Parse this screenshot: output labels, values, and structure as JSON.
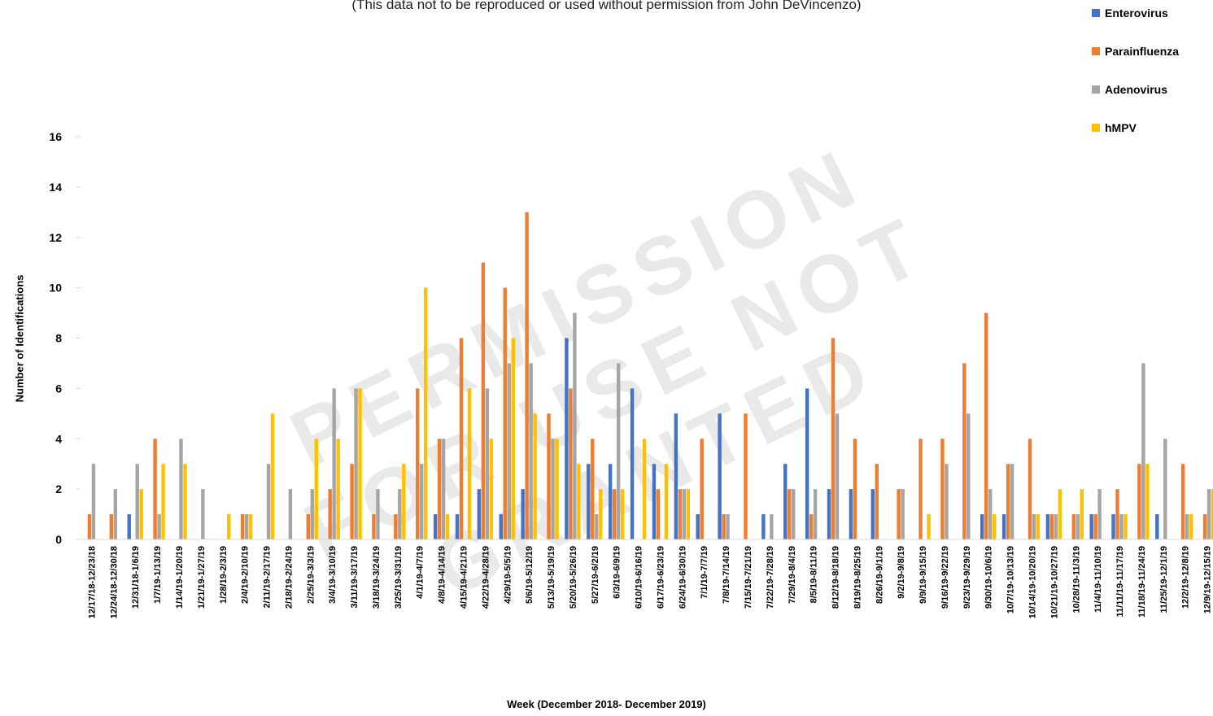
{
  "subtitle": "(This data not to be reproduced or used without permission from John DeVincenzo)",
  "watermark": [
    "PERMISSION",
    "FOR USE NOT",
    "GRANTED"
  ],
  "chart_data": {
    "type": "bar",
    "xlabel": "Week (December 2018- December 2019)",
    "ylabel": "Number of Identifications",
    "ylim": [
      0,
      16
    ],
    "yticks": [
      0,
      2,
      4,
      6,
      8,
      10,
      12,
      14,
      16
    ],
    "legend_position": "top-right",
    "grid": false,
    "categories": [
      "12/17/18-12/23/18",
      "12/24/18-12/30/18",
      "12/31/18-1/6/19",
      "1/7/19-1/13/19",
      "1/14/19-1/20/19",
      "1/21/19-1/27/19",
      "1/28/19-2/3/19",
      "2/4/19-2/10/19",
      "2/11/19-2/17/19",
      "2/18/19-2/24/19",
      "2/25/19-3/3/19",
      "3/4/19-3/10/19",
      "3/11/19-3/17/19",
      "3/18/19-3/24/19",
      "3/25/19-3/31/19",
      "4/1/19-4/7/19",
      "4/8/19-4/14/19",
      "4/15/19-4/21/19",
      "4/22/19-4/28/19",
      "4/29/19-5/5/19",
      "5/6/19-5/12/19",
      "5/13/19-5/19/19",
      "5/20/19-5/26/19",
      "5/27/19-6/2/19",
      "6/3/19-6/9/19",
      "6/10/19-6/16/19",
      "6/17/19-6/23/19",
      "6/24/19-6/30/19",
      "7/1/19-7/7/19",
      "7/8/19-7/14/19",
      "7/15/19-7/21/19",
      "7/22/19-7/28/19",
      "7/29/19-8/4/19",
      "8/5/19-8/11/19",
      "8/12/19-8/18/19",
      "8/19/19-8/25/19",
      "8/26/19-9/1/19",
      "9/2/19-9/8/19",
      "9/9/19-9/15/19",
      "9/16/19-9/22/19",
      "9/23/19-9/29/19",
      "9/30/19-10/6/19",
      "10/7/19-10/13/19",
      "10/14/19-10/20/19",
      "10/21/19-10/27/19",
      "10/28/19-11/3/19",
      "11/4/19-11/10/19",
      "11/11/19-11/17/19",
      "11/18/19-11/24/19",
      "11/25/19-12/1/19",
      "12/2/19-12/8/19",
      "12/9/19-12/15/19"
    ],
    "series": [
      {
        "name": "Enterovirus",
        "color": "#4472C4",
        "values": [
          0,
          0,
          1,
          0,
          0,
          0,
          0,
          0,
          0,
          0,
          0,
          0,
          0,
          0,
          0,
          0,
          1,
          1,
          2,
          1,
          2,
          0,
          8,
          3,
          3,
          6,
          3,
          5,
          1,
          5,
          0,
          1,
          3,
          6,
          2,
          2,
          2,
          0,
          0,
          0,
          0,
          1,
          1,
          0,
          1,
          0,
          1,
          1,
          0,
          1,
          0,
          0
        ]
      },
      {
        "name": "Parainfluenza",
        "color": "#ED7D31",
        "values": [
          1,
          1,
          0,
          4,
          0,
          0,
          0,
          1,
          0,
          0,
          1,
          2,
          3,
          1,
          1,
          6,
          4,
          8,
          11,
          10,
          13,
          5,
          6,
          4,
          2,
          0,
          2,
          2,
          4,
          1,
          5,
          0,
          2,
          1,
          8,
          4,
          3,
          2,
          4,
          4,
          7,
          9,
          3,
          4,
          1,
          1,
          1,
          2,
          3,
          0,
          3,
          1
        ]
      },
      {
        "name": "Adenovirus",
        "color": "#A5A5A5",
        "values": [
          3,
          2,
          3,
          1,
          4,
          2,
          0,
          1,
          3,
          2,
          2,
          6,
          6,
          2,
          2,
          3,
          4,
          0,
          6,
          7,
          7,
          4,
          9,
          1,
          7,
          0,
          0,
          2,
          0,
          1,
          0,
          1,
          2,
          2,
          5,
          0,
          0,
          2,
          0,
          3,
          5,
          2,
          3,
          1,
          1,
          1,
          2,
          1,
          7,
          4,
          1,
          2
        ]
      },
      {
        "name": "hMPV",
        "color": "#FFC000",
        "values": [
          0,
          0,
          2,
          3,
          3,
          0,
          1,
          1,
          5,
          0,
          4,
          4,
          6,
          0,
          3,
          10,
          1,
          6,
          4,
          8,
          5,
          4,
          3,
          2,
          2,
          4,
          3,
          2,
          0,
          0,
          0,
          0,
          0,
          0,
          0,
          0,
          0,
          0,
          1,
          0,
          0,
          1,
          0,
          1,
          2,
          2,
          0,
          1,
          3,
          0,
          1,
          2
        ]
      }
    ]
  }
}
